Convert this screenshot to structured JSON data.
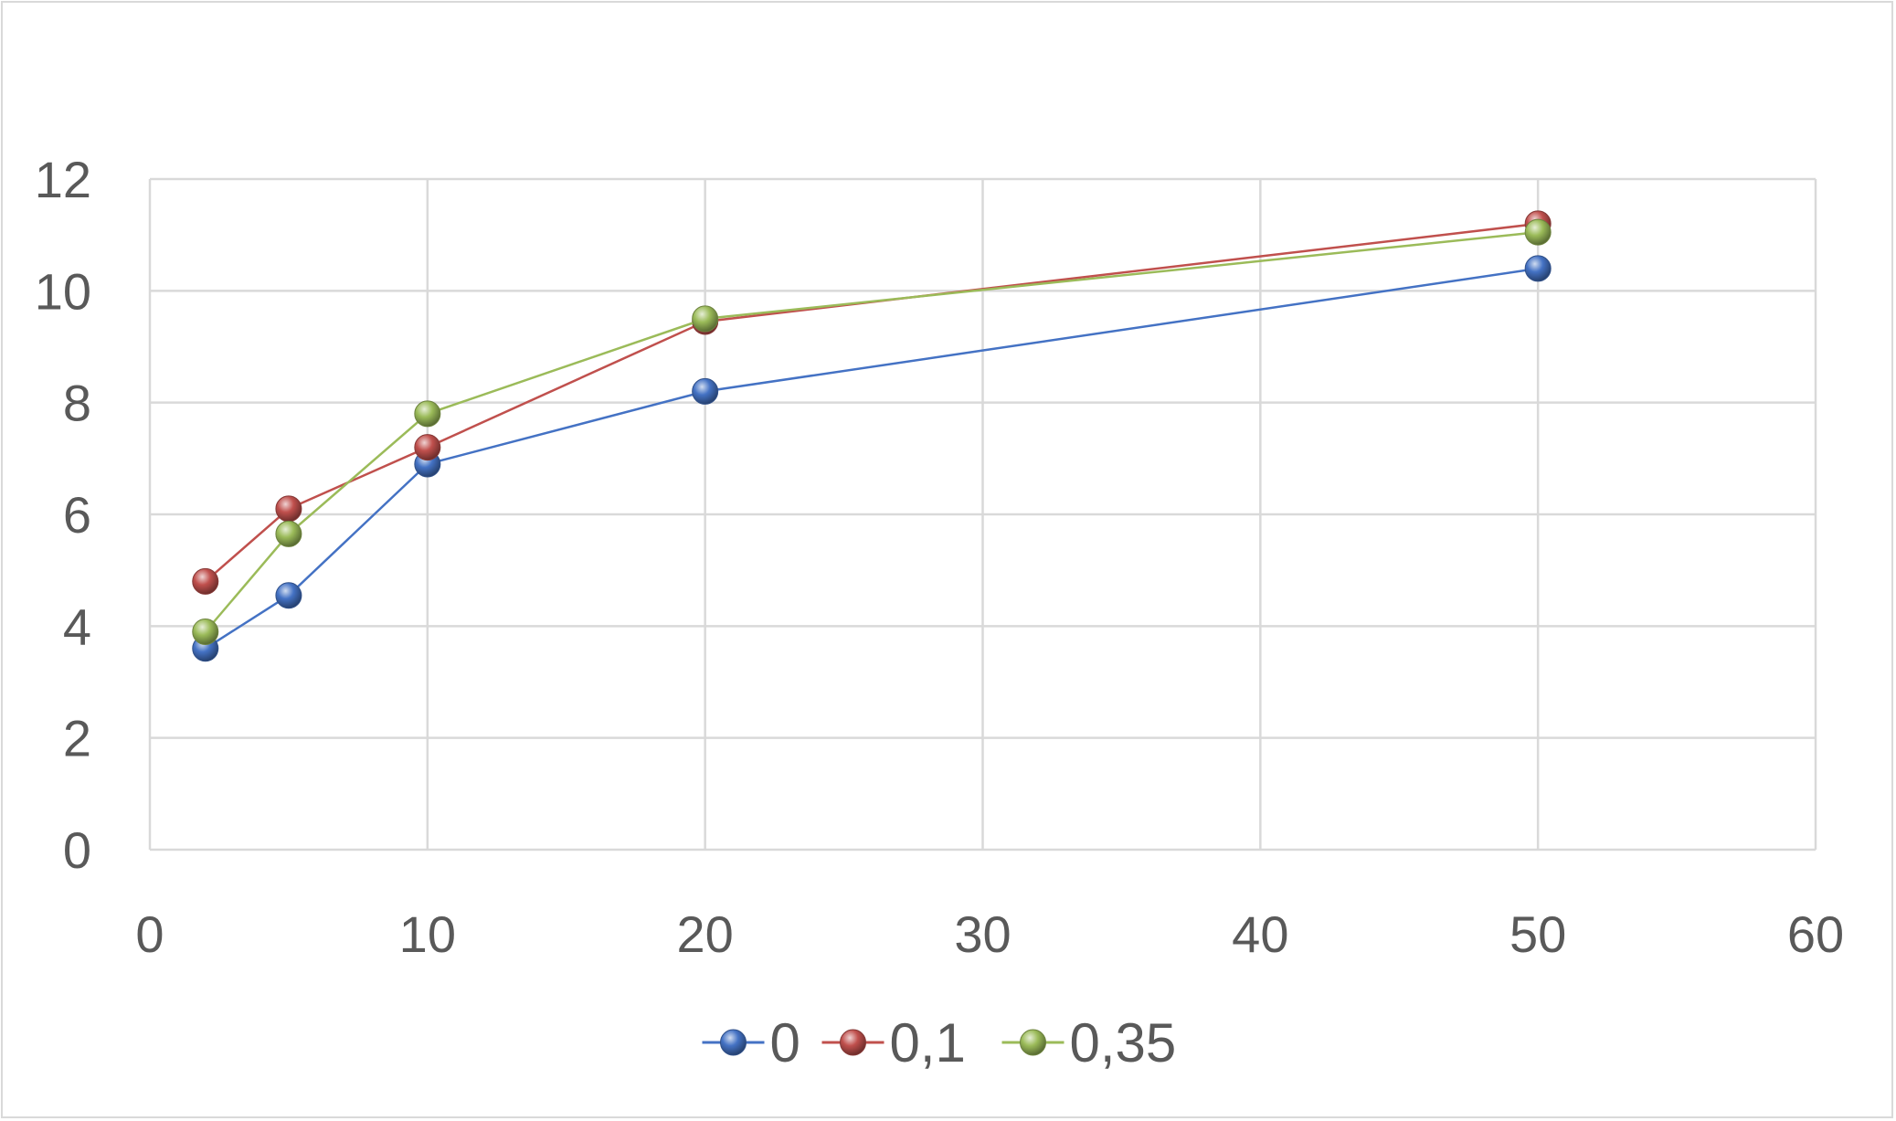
{
  "chart_data": {
    "type": "scatter",
    "title": "",
    "xlabel": "",
    "ylabel": "",
    "xlim": [
      0,
      60
    ],
    "ylim": [
      0,
      12
    ],
    "x_ticks": [
      0,
      10,
      20,
      30,
      40,
      50,
      60
    ],
    "y_ticks": [
      0,
      2,
      4,
      6,
      8,
      10,
      12
    ],
    "grid": true,
    "legend_position": "bottom",
    "markers": "spheres",
    "series": [
      {
        "name": "0",
        "color": "#4472c4",
        "x": [
          2,
          5,
          10,
          20,
          50
        ],
        "y": [
          3.6,
          4.55,
          6.9,
          8.2,
          10.4
        ]
      },
      {
        "name": "0,1",
        "color": "#c0504d",
        "x": [
          2,
          5,
          10,
          20,
          50
        ],
        "y": [
          4.8,
          6.1,
          7.2,
          9.45,
          11.2
        ]
      },
      {
        "name": "0,35",
        "color": "#9bbb59",
        "x": [
          2,
          5,
          10,
          20,
          50
        ],
        "y": [
          3.9,
          5.65,
          7.8,
          9.5,
          11.05
        ]
      }
    ]
  }
}
